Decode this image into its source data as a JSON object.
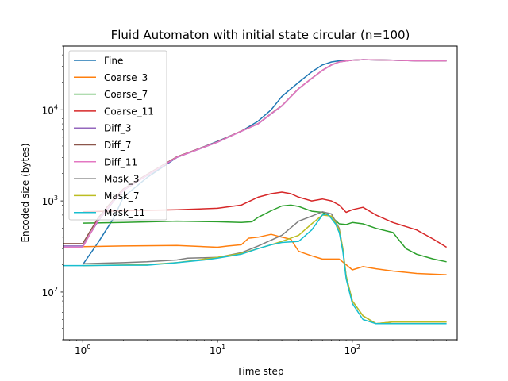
{
  "chart_data": {
    "type": "line",
    "title": "Fluid Automaton with initial state circular (n=100)",
    "xlabel": "Time step",
    "ylabel": "Encoded size (bytes)",
    "xscale": "log",
    "yscale": "log",
    "xlim": [
      0.72,
      600
    ],
    "ylim": [
      30,
      50000
    ],
    "x_ticks": [
      {
        "value": 1,
        "base": "10",
        "exp": "0"
      },
      {
        "value": 10,
        "base": "10",
        "exp": "1"
      },
      {
        "value": 100,
        "base": "10",
        "exp": "2"
      }
    ],
    "y_ticks": [
      {
        "value": 100,
        "base": "10",
        "exp": "2"
      },
      {
        "value": 1000,
        "base": "10",
        "exp": "3"
      },
      {
        "value": 10000,
        "base": "10",
        "exp": "4"
      }
    ],
    "legend_position": "upper-left",
    "grid": false,
    "series": [
      {
        "name": "Fine",
        "color": "#1f77b4",
        "points": [
          [
            1,
            200
          ],
          [
            1.3,
            350
          ],
          [
            1.7,
            650
          ],
          [
            2,
            1100
          ],
          [
            3,
            1800
          ],
          [
            5,
            3000
          ],
          [
            10,
            4500
          ],
          [
            15,
            5800
          ],
          [
            20,
            7500
          ],
          [
            25,
            10000
          ],
          [
            30,
            14000
          ],
          [
            40,
            20000
          ],
          [
            50,
            26000
          ],
          [
            60,
            31000
          ],
          [
            70,
            33500
          ],
          [
            80,
            34500
          ],
          [
            100,
            35000
          ],
          [
            120,
            35500
          ],
          [
            200,
            35000
          ],
          [
            300,
            34500
          ],
          [
            500,
            34500
          ]
        ]
      },
      {
        "name": "Coarse_3",
        "color": "#ff7f0e",
        "points": [
          [
            1,
            315
          ],
          [
            2,
            320
          ],
          [
            5,
            325
          ],
          [
            10,
            310
          ],
          [
            12,
            320
          ],
          [
            15,
            330
          ],
          [
            17,
            390
          ],
          [
            20,
            400
          ],
          [
            25,
            430
          ],
          [
            30,
            400
          ],
          [
            35,
            380
          ],
          [
            40,
            280
          ],
          [
            50,
            250
          ],
          [
            60,
            230
          ],
          [
            70,
            230
          ],
          [
            80,
            230
          ],
          [
            90,
            200
          ],
          [
            100,
            175
          ],
          [
            120,
            190
          ],
          [
            150,
            180
          ],
          [
            200,
            170
          ],
          [
            300,
            160
          ],
          [
            500,
            155
          ]
        ]
      },
      {
        "name": "Coarse_7",
        "color": "#2ca02c",
        "points": [
          [
            1,
            570
          ],
          [
            2,
            580
          ],
          [
            5,
            600
          ],
          [
            10,
            590
          ],
          [
            15,
            580
          ],
          [
            18,
            590
          ],
          [
            20,
            660
          ],
          [
            25,
            780
          ],
          [
            30,
            880
          ],
          [
            35,
            900
          ],
          [
            40,
            870
          ],
          [
            50,
            770
          ],
          [
            60,
            750
          ],
          [
            70,
            670
          ],
          [
            80,
            560
          ],
          [
            90,
            550
          ],
          [
            100,
            580
          ],
          [
            120,
            560
          ],
          [
            150,
            500
          ],
          [
            200,
            450
          ],
          [
            250,
            300
          ],
          [
            300,
            260
          ],
          [
            400,
            230
          ],
          [
            500,
            215
          ]
        ]
      },
      {
        "name": "Coarse_11",
        "color": "#d62728",
        "points": [
          [
            1,
            760
          ],
          [
            2,
            780
          ],
          [
            5,
            800
          ],
          [
            10,
            830
          ],
          [
            15,
            900
          ],
          [
            20,
            1100
          ],
          [
            25,
            1200
          ],
          [
            30,
            1250
          ],
          [
            35,
            1200
          ],
          [
            40,
            1100
          ],
          [
            50,
            1000
          ],
          [
            60,
            1050
          ],
          [
            70,
            1000
          ],
          [
            80,
            900
          ],
          [
            90,
            750
          ],
          [
            100,
            800
          ],
          [
            120,
            850
          ],
          [
            150,
            700
          ],
          [
            200,
            580
          ],
          [
            300,
            480
          ],
          [
            400,
            380
          ],
          [
            500,
            310
          ]
        ]
      },
      {
        "name": "Diff_3",
        "color": "#9467bd",
        "points": [
          [
            0.72,
            320
          ],
          [
            1,
            320
          ],
          [
            1.3,
            600
          ],
          [
            1.7,
            1000
          ],
          [
            2,
            1300
          ],
          [
            3,
            1900
          ],
          [
            5,
            3000
          ],
          [
            10,
            4400
          ],
          [
            15,
            5800
          ],
          [
            20,
            7000
          ],
          [
            25,
            9000
          ],
          [
            30,
            11000
          ],
          [
            40,
            17000
          ],
          [
            50,
            22000
          ],
          [
            60,
            27000
          ],
          [
            70,
            31000
          ],
          [
            80,
            33500
          ],
          [
            100,
            35000
          ],
          [
            120,
            35500
          ],
          [
            200,
            35000
          ],
          [
            300,
            34500
          ],
          [
            500,
            34500
          ]
        ]
      },
      {
        "name": "Diff_7",
        "color": "#8c564b",
        "points": [
          [
            0.72,
            340
          ],
          [
            1,
            340
          ],
          [
            1.3,
            650
          ],
          [
            1.7,
            1050
          ],
          [
            2,
            1350
          ],
          [
            3,
            1950
          ],
          [
            5,
            3050
          ],
          [
            10,
            4450
          ],
          [
            15,
            5850
          ],
          [
            20,
            7050
          ],
          [
            25,
            9100
          ],
          [
            30,
            11100
          ],
          [
            40,
            17100
          ],
          [
            50,
            22100
          ],
          [
            60,
            27100
          ],
          [
            70,
            31100
          ],
          [
            80,
            33600
          ],
          [
            100,
            35000
          ],
          [
            120,
            35500
          ],
          [
            200,
            35000
          ],
          [
            300,
            34500
          ],
          [
            500,
            34500
          ]
        ]
      },
      {
        "name": "Diff_11",
        "color": "#e377c2",
        "points": [
          [
            0.72,
            310
          ],
          [
            1,
            310
          ],
          [
            1.3,
            620
          ],
          [
            1.7,
            1020
          ],
          [
            2,
            1320
          ],
          [
            3,
            1920
          ],
          [
            5,
            3020
          ],
          [
            10,
            4420
          ],
          [
            15,
            5820
          ],
          [
            20,
            7020
          ],
          [
            25,
            9050
          ],
          [
            30,
            11050
          ],
          [
            40,
            17050
          ],
          [
            50,
            22050
          ],
          [
            60,
            27050
          ],
          [
            70,
            31050
          ],
          [
            80,
            33550
          ],
          [
            100,
            35000
          ],
          [
            120,
            35500
          ],
          [
            200,
            35000
          ],
          [
            300,
            34500
          ],
          [
            500,
            34500
          ]
        ]
      },
      {
        "name": "Mask_3",
        "color": "#7f7f7f",
        "points": [
          [
            1,
            205
          ],
          [
            2,
            210
          ],
          [
            3,
            215
          ],
          [
            5,
            225
          ],
          [
            6,
            235
          ],
          [
            10,
            240
          ],
          [
            15,
            270
          ],
          [
            20,
            320
          ],
          [
            30,
            420
          ],
          [
            40,
            600
          ],
          [
            50,
            680
          ],
          [
            60,
            760
          ],
          [
            70,
            720
          ],
          [
            75,
            600
          ],
          [
            80,
            500
          ],
          [
            85,
            300
          ],
          [
            90,
            150
          ],
          [
            100,
            80
          ],
          [
            120,
            55
          ],
          [
            150,
            45
          ],
          [
            200,
            47
          ],
          [
            300,
            47
          ],
          [
            500,
            47
          ]
        ]
      },
      {
        "name": "Mask_7",
        "color": "#bcbd22",
        "points": [
          [
            1,
            195
          ],
          [
            2,
            198
          ],
          [
            3,
            200
          ],
          [
            5,
            210
          ],
          [
            8,
            230
          ],
          [
            10,
            240
          ],
          [
            15,
            265
          ],
          [
            20,
            300
          ],
          [
            25,
            330
          ],
          [
            30,
            360
          ],
          [
            40,
            420
          ],
          [
            50,
            560
          ],
          [
            60,
            700
          ],
          [
            70,
            680
          ],
          [
            75,
            580
          ],
          [
            80,
            480
          ],
          [
            85,
            300
          ],
          [
            90,
            150
          ],
          [
            100,
            80
          ],
          [
            120,
            55
          ],
          [
            150,
            45
          ],
          [
            200,
            47
          ],
          [
            300,
            47
          ],
          [
            500,
            47
          ]
        ]
      },
      {
        "name": "Mask_11",
        "color": "#17becf",
        "points": [
          [
            0.72,
            195
          ],
          [
            1,
            195
          ],
          [
            2,
            197
          ],
          [
            3,
            197
          ],
          [
            5,
            210
          ],
          [
            8,
            225
          ],
          [
            10,
            235
          ],
          [
            15,
            260
          ],
          [
            20,
            300
          ],
          [
            25,
            330
          ],
          [
            30,
            350
          ],
          [
            40,
            360
          ],
          [
            50,
            480
          ],
          [
            60,
            700
          ],
          [
            65,
            720
          ],
          [
            70,
            640
          ],
          [
            75,
            560
          ],
          [
            80,
            450
          ],
          [
            85,
            280
          ],
          [
            90,
            140
          ],
          [
            100,
            75
          ],
          [
            120,
            50
          ],
          [
            150,
            45
          ],
          [
            200,
            45
          ],
          [
            300,
            45
          ],
          [
            500,
            45
          ]
        ]
      }
    ]
  }
}
